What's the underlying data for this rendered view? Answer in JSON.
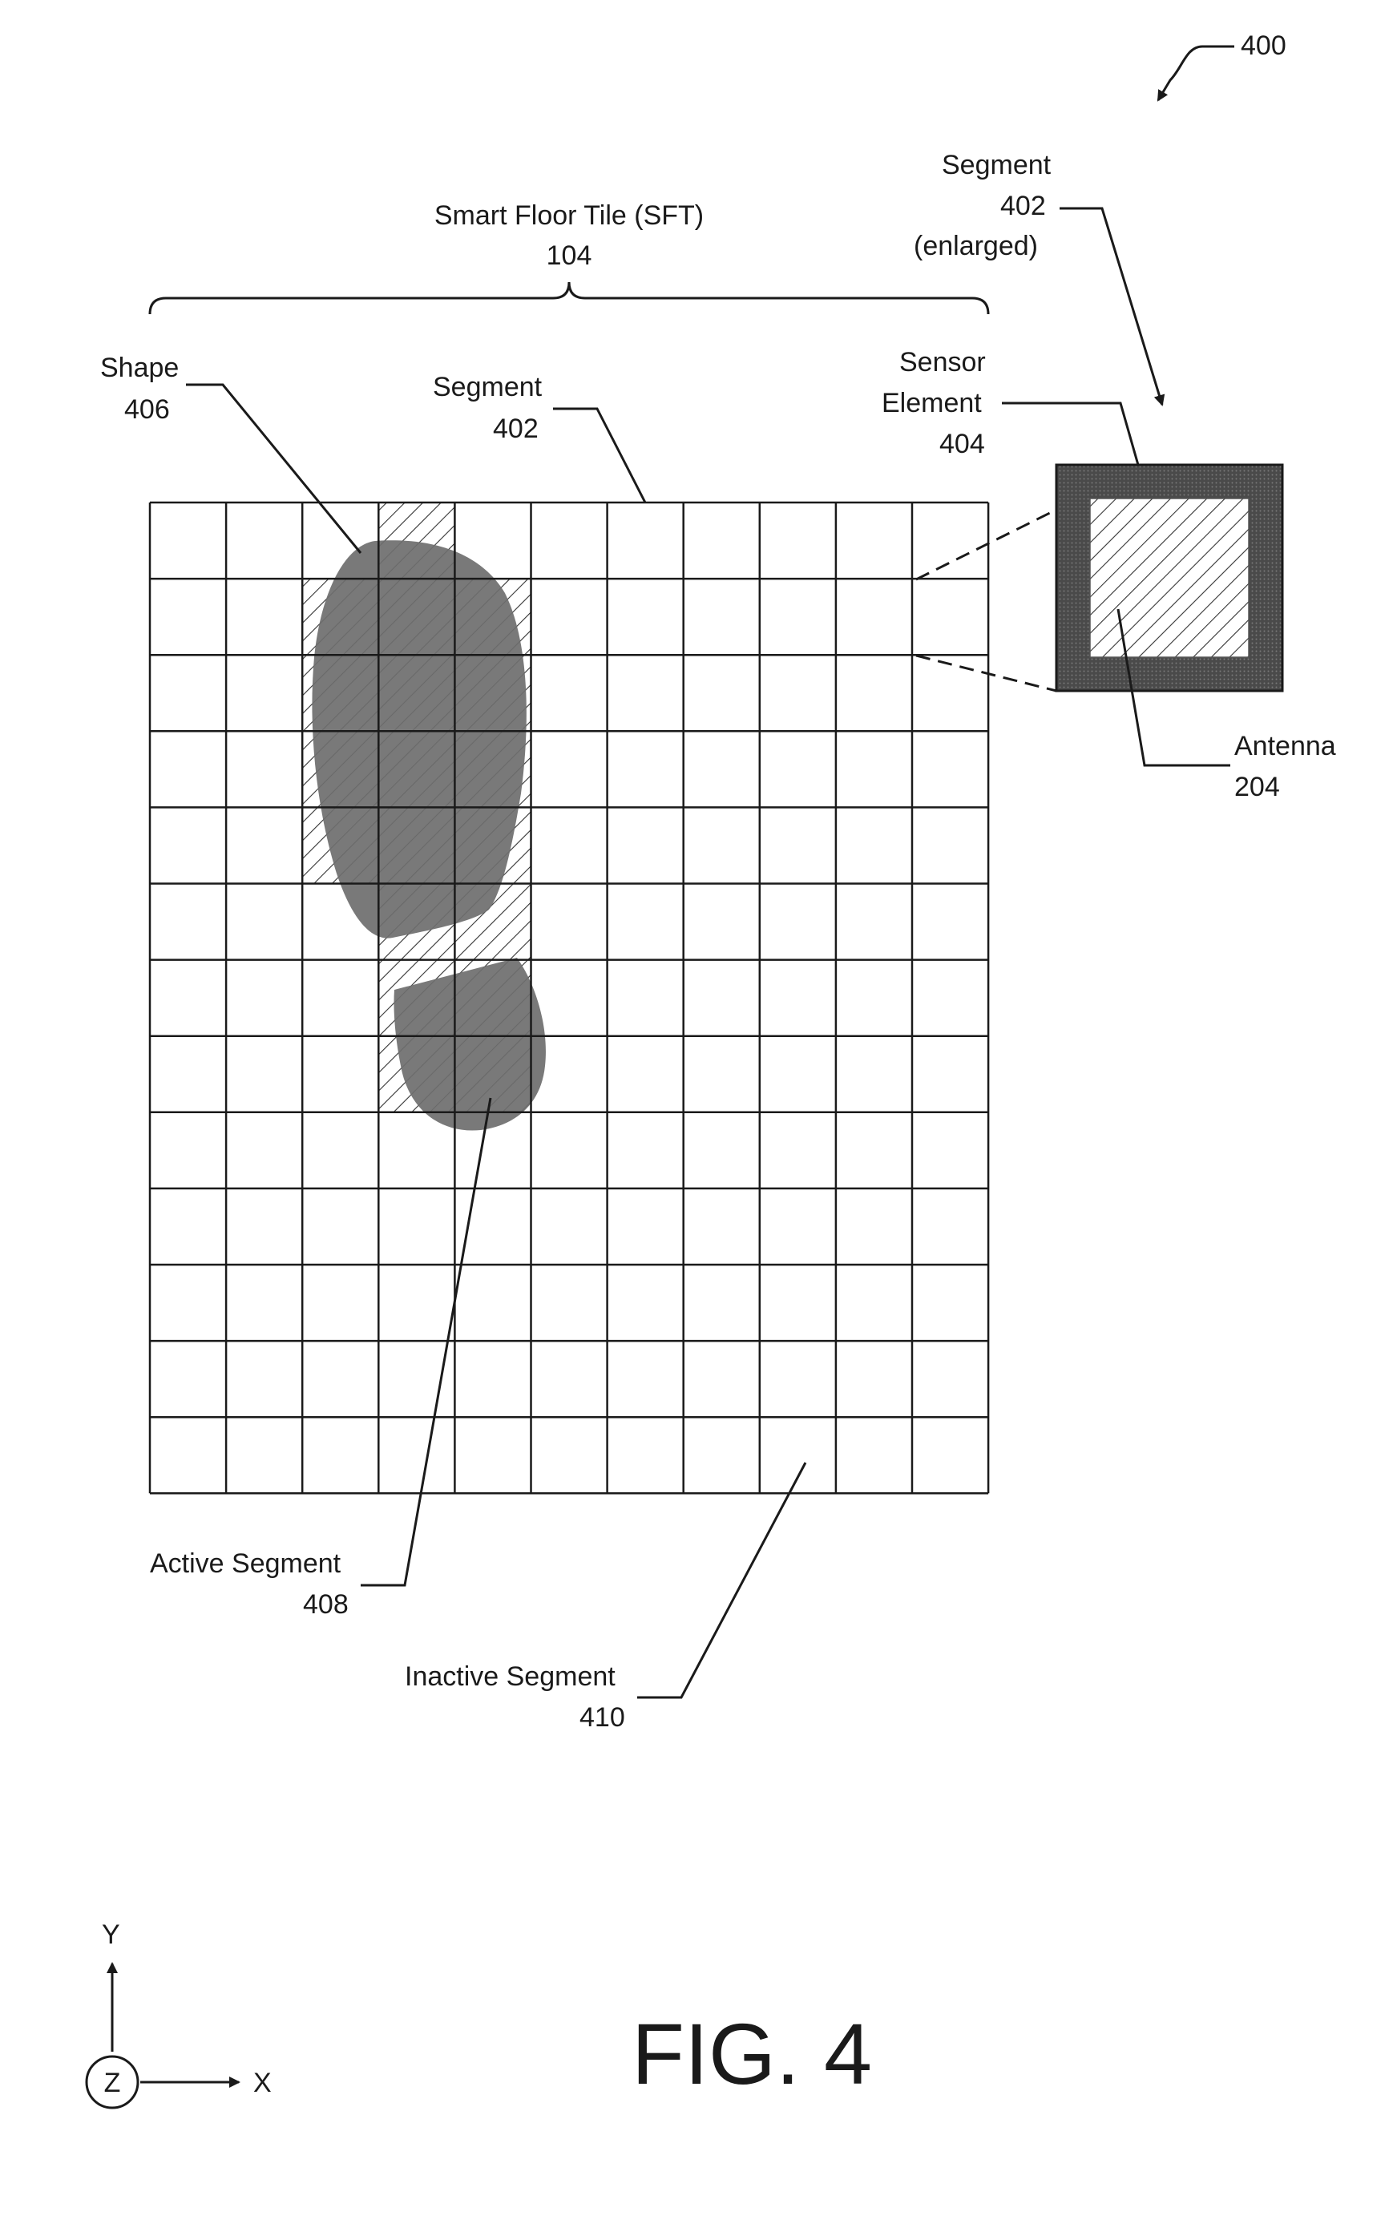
{
  "figure": {
    "number": "400",
    "title": "FIG. 4"
  },
  "tile": {
    "label": "Smart Floor Tile (SFT)",
    "ref": "104",
    "columns": 11,
    "rows": 13,
    "active_cells": [
      [
        3,
        0
      ],
      [
        2,
        1
      ],
      [
        3,
        1
      ],
      [
        4,
        1
      ],
      [
        2,
        2
      ],
      [
        3,
        2
      ],
      [
        4,
        2
      ],
      [
        2,
        3
      ],
      [
        3,
        3
      ],
      [
        4,
        3
      ],
      [
        2,
        4
      ],
      [
        3,
        4
      ],
      [
        4,
        4
      ],
      [
        3,
        5
      ],
      [
        4,
        5
      ],
      [
        3,
        6
      ],
      [
        4,
        6
      ],
      [
        3,
        7
      ],
      [
        4,
        7
      ]
    ]
  },
  "labels": {
    "shape": {
      "text": "Shape",
      "ref": "406"
    },
    "segment": {
      "text": "Segment",
      "ref": "402"
    },
    "segment_enlarged": {
      "text": "Segment",
      "ref": "402",
      "note": "(enlarged)"
    },
    "sensor_element": {
      "line1": "Sensor",
      "line2": "Element",
      "ref": "404"
    },
    "antenna": {
      "text": "Antenna",
      "ref": "204"
    },
    "active_segment": {
      "text": "Active Segment",
      "ref": "408"
    },
    "inactive_segment": {
      "text": "Inactive Segment",
      "ref": "410"
    }
  },
  "axes": {
    "y": "Y",
    "x": "X",
    "z": "Z"
  },
  "colors": {
    "line": "#1a1a1a",
    "footprint": "#6e6e6e",
    "sensor_frame": "#4a4a4a",
    "hatch": "#333333"
  }
}
